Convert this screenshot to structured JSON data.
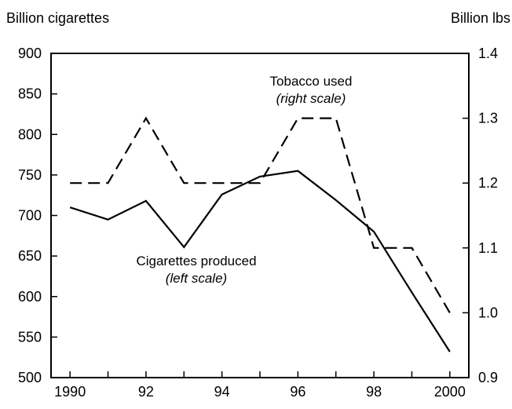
{
  "chart_data": {
    "type": "line",
    "x": [
      1990,
      1991,
      1992,
      1993,
      1994,
      1995,
      1996,
      1997,
      1998,
      1999,
      2000
    ],
    "xticks": [
      1990,
      1992,
      1994,
      1996,
      1998,
      2000
    ],
    "xtick_labels": [
      "1990",
      "92",
      "94",
      "96",
      "98",
      "2000"
    ],
    "xlim": [
      1989.5,
      2000.5
    ],
    "left_axis": {
      "label": "Billion cigarettes",
      "ylim": [
        500,
        900
      ],
      "ticks": [
        500,
        550,
        600,
        650,
        700,
        750,
        800,
        850,
        900
      ],
      "tick_labels": [
        "500",
        "550",
        "600",
        "650",
        "700",
        "750",
        "800",
        "850",
        "900"
      ]
    },
    "right_axis": {
      "label": "Billion lbs",
      "ylim": [
        0.9,
        1.4
      ],
      "ticks": [
        0.9,
        1.0,
        1.1,
        1.2,
        1.3,
        1.4
      ],
      "tick_labels": [
        "0.9",
        "1.0",
        "1.1",
        "1.2",
        "1.3",
        "1.4"
      ]
    },
    "series": [
      {
        "id": "cigarettes",
        "axis": "left",
        "style": "solid",
        "values": [
          710,
          695,
          718,
          661,
          726,
          748,
          755,
          719,
          680,
          605,
          532
        ]
      },
      {
        "id": "tobacco",
        "axis": "right",
        "style": "dashed",
        "values": [
          1.2,
          1.2,
          1.3,
          1.2,
          1.2,
          1.2,
          1.3,
          1.3,
          1.1,
          1.1,
          1.0
        ]
      }
    ],
    "annotations": {
      "cigarettes_name": "Cigarettes produced",
      "cigarettes_scale": "(left scale)",
      "tobacco_name": "Tobacco used",
      "tobacco_scale": "(right scale)"
    },
    "grid": false,
    "colors": {
      "line": "#000000",
      "background": "#ffffff"
    }
  }
}
